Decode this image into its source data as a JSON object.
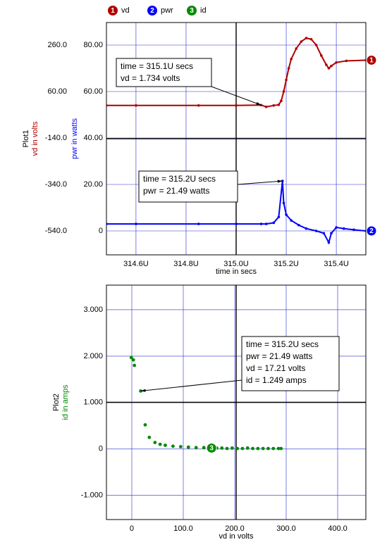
{
  "chart_data": [
    {
      "type": "line",
      "label": "Plot1",
      "xlabel": "time in secs",
      "ylabel": "pwr in watts",
      "y2label": "vd in volts",
      "xlim": [
        314.482,
        315.518
      ],
      "xticks": [
        {
          "value": 314.6,
          "label": "314.6U"
        },
        {
          "value": 314.8,
          "label": "314.8U"
        },
        {
          "value": 315.0,
          "label": "315.0U"
        },
        {
          "value": 315.2,
          "label": "315.2U"
        },
        {
          "value": 315.4,
          "label": "315.4U"
        }
      ],
      "ylim": [
        -10.3,
        89.7
      ],
      "yticks": [
        {
          "value": 80,
          "label": "80.00"
        },
        {
          "value": 60,
          "label": "60.00"
        },
        {
          "value": 40,
          "label": "40.00"
        },
        {
          "value": 20,
          "label": "20.00"
        },
        0
      ],
      "y2lim": [
        -643,
        357
      ],
      "y2ticks": [
        {
          "value": 260,
          "label": "260.0"
        },
        {
          "value": 60,
          "label": "60.00"
        },
        {
          "value": -140,
          "label": "-140.0"
        },
        {
          "value": -340,
          "label": "-340.0"
        },
        {
          "value": -540,
          "label": "-540.0"
        }
      ],
      "grid": true,
      "series": [
        {
          "name": "vd",
          "badge": "1",
          "color": "#b00000",
          "axis": "y2",
          "x": [
            314.482,
            314.6,
            314.85,
            315.0,
            315.1,
            315.12,
            315.15,
            315.17,
            315.18,
            315.19,
            315.2,
            315.21,
            315.22,
            315.24,
            315.26,
            315.28,
            315.3,
            315.32,
            315.34,
            315.36,
            315.37,
            315.38,
            315.4,
            315.44,
            315.518
          ],
          "values": [
            0,
            0,
            0,
            0,
            1.734,
            -6,
            0,
            3,
            20,
            60,
            110,
            160,
            200,
            245,
            275,
            290,
            285,
            260,
            215,
            175,
            160,
            170,
            185,
            192,
            195
          ]
        },
        {
          "name": "pwr",
          "badge": "2",
          "color": "#0000ff",
          "x": [
            314.482,
            314.6,
            314.85,
            315.0,
            315.1,
            315.12,
            315.15,
            315.17,
            315.185,
            315.19,
            315.2,
            315.22,
            315.25,
            315.28,
            315.32,
            315.35,
            315.37,
            315.38,
            315.4,
            315.43,
            315.47,
            315.518
          ],
          "values": [
            3,
            3,
            3,
            3,
            3,
            3,
            3.5,
            6,
            21.49,
            12,
            7,
            4.5,
            2.5,
            1,
            0,
            -1,
            -5,
            -1,
            1.5,
            1,
            0.5,
            0
          ]
        },
        {
          "name": "id",
          "badge": "3",
          "color": "#008a00",
          "legend_only": true
        }
      ],
      "annotations": [
        {
          "axis": "y2",
          "x": 315.1,
          "y": 1.734,
          "lines": [
            "time = 315.1U secs",
            "vd = 1.734 volts"
          ]
        },
        {
          "x": 315.185,
          "y": 21.49,
          "lines": [
            "time = 315.2U secs",
            "pwr = 21.49 watts"
          ]
        }
      ]
    },
    {
      "type": "scatter",
      "label": "Plot2",
      "xlabel": "vd in volts",
      "ylabel": "id in amps",
      "xlim": [
        -49.3,
        454.8
      ],
      "xticks": [
        0,
        {
          "value": 100,
          "label": "100.0"
        },
        {
          "value": 200,
          "label": "200.0"
        },
        {
          "value": 300,
          "label": "300.0"
        },
        {
          "value": 400,
          "label": "400.0"
        }
      ],
      "ylim": [
        -1.52,
        3.53
      ],
      "yticks": [
        {
          "value": 3,
          "label": "3.000"
        },
        {
          "value": 2,
          "label": "2.000"
        },
        {
          "value": 1,
          "label": "1.000"
        },
        0,
        {
          "value": -1,
          "label": "-1.000"
        }
      ],
      "grid": true,
      "series": [
        {
          "name": "id",
          "badge": "3",
          "color": "#008a00",
          "x": [
            -1,
            3,
            5,
            17.21,
            26,
            34,
            45,
            55,
            65,
            80,
            95,
            110,
            125,
            140,
            155,
            165,
            175,
            185,
            195,
            205,
            215,
            225,
            235,
            245,
            255,
            265,
            275,
            285,
            290
          ],
          "values": [
            1.97,
            1.92,
            1.8,
            1.249,
            0.52,
            0.25,
            0.14,
            0.1,
            0.08,
            0.06,
            0.05,
            0.04,
            0.03,
            0.03,
            0.02,
            0.02,
            0.02,
            0.01,
            0.02,
            0.01,
            0.01,
            0.02,
            0.01,
            0.01,
            0.01,
            0.01,
            0.01,
            0.01,
            0.01
          ]
        }
      ],
      "annotations": [
        {
          "x": 17.21,
          "y": 1.249,
          "lines": [
            "time = 315.2U secs",
            "pwr = 21.49 watts",
            "vd = 17.21 volts",
            "id = 1.249 amps"
          ]
        }
      ]
    }
  ]
}
